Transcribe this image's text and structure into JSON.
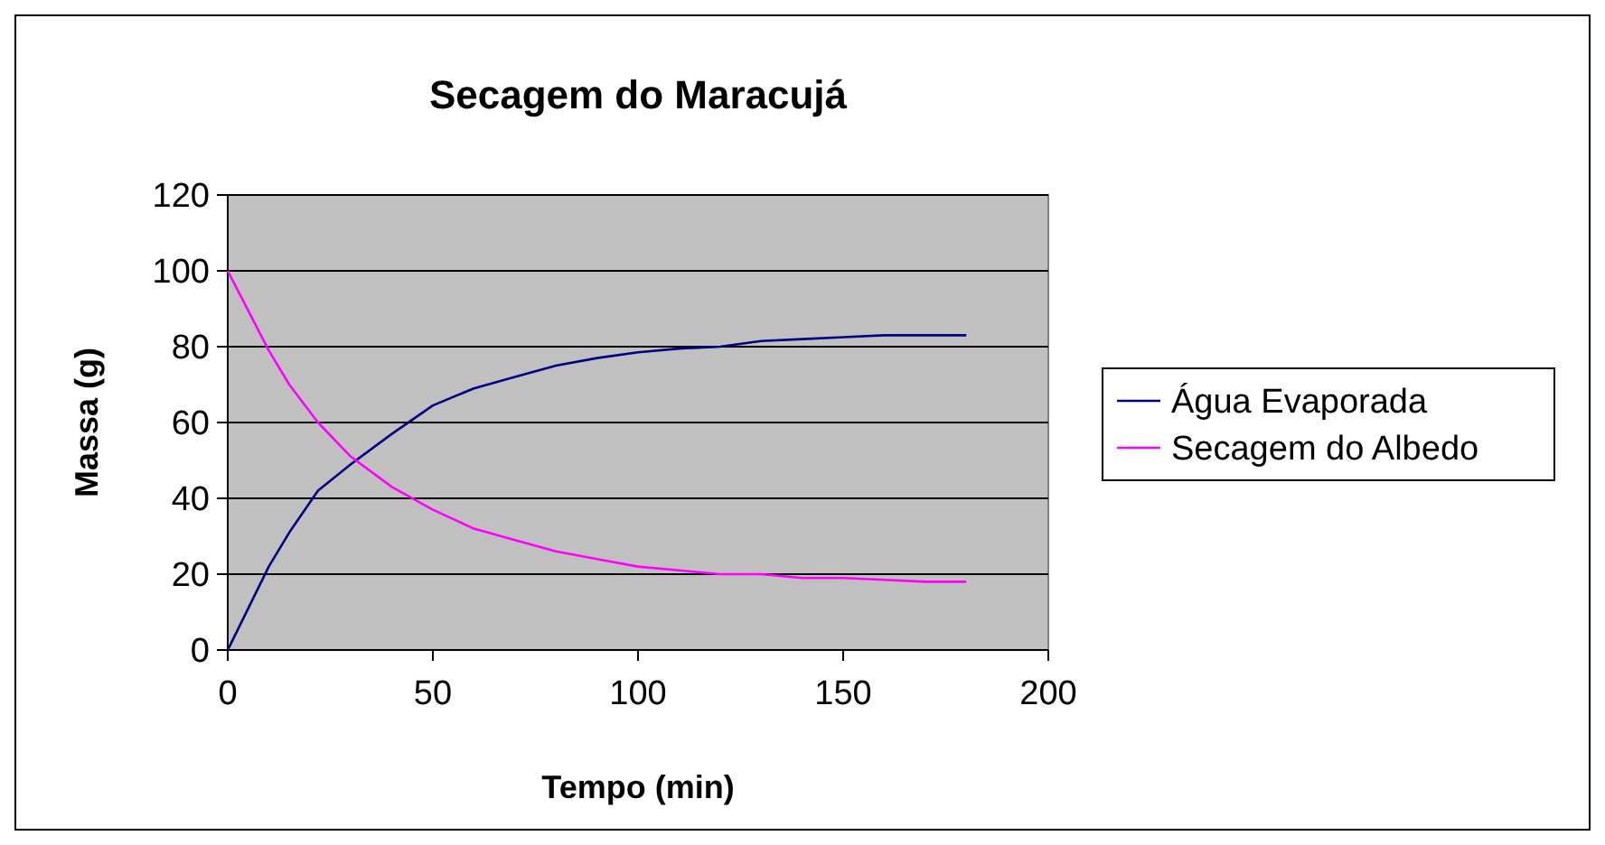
{
  "chart_data": {
    "type": "line",
    "title": "Secagem do Maracujá",
    "xlabel": "Tempo (min)",
    "ylabel": "Massa (g)",
    "xlim": [
      0,
      200
    ],
    "xticks": [
      0,
      50,
      100,
      150,
      200
    ],
    "ylim": [
      0,
      120
    ],
    "yticks": [
      0,
      20,
      40,
      60,
      80,
      100,
      120
    ],
    "grid": "y",
    "legend": "right",
    "line_style": "solid",
    "series": [
      {
        "name": "Água Evaporada",
        "color": "#000080",
        "x": [
          0,
          10,
          15,
          22,
          30,
          40,
          50,
          60,
          70,
          80,
          90,
          100,
          110,
          120,
          130,
          140,
          150,
          160,
          170,
          180
        ],
        "values": [
          0,
          22,
          31,
          42,
          49,
          57,
          64.5,
          69,
          72,
          75,
          77,
          78.5,
          79.5,
          80,
          81.5,
          82,
          82.5,
          83,
          83,
          83
        ]
      },
      {
        "name": "Secagem do Albedo",
        "color": "#ff00ff",
        "x": [
          0,
          10,
          15,
          22,
          30,
          40,
          50,
          60,
          70,
          80,
          90,
          100,
          110,
          120,
          130,
          140,
          150,
          160,
          170,
          180
        ],
        "values": [
          100,
          79,
          70,
          60,
          51,
          43,
          37,
          32,
          29,
          26,
          24,
          22,
          21,
          20,
          20,
          19,
          19,
          18.5,
          18,
          18
        ]
      }
    ]
  }
}
